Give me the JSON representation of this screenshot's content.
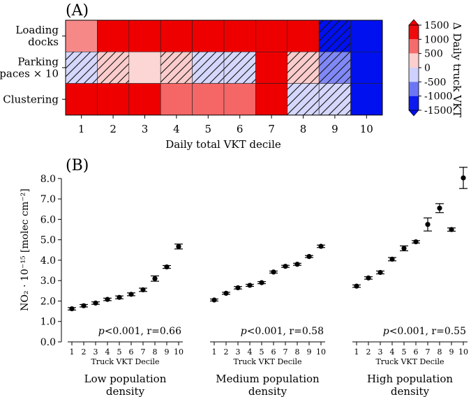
{
  "colors": {
    "red": "#ee0000",
    "blue": "#0010ee",
    "white": "#ffffff",
    "black": "#000000"
  },
  "chart_data": [
    {
      "panel": "(A)",
      "type": "heatmap",
      "rows": [
        "Loading docks",
        "Parking spaces × 10",
        "Clustering"
      ],
      "row_label_lines": [
        [
          "Loading",
          "docks"
        ],
        [
          "Parking",
          "spaces × 10"
        ],
        [
          "Clustering"
        ]
      ],
      "columns": [
        "1",
        "2",
        "3",
        "4",
        "5",
        "6",
        "7",
        "8",
        "9",
        "10"
      ],
      "xlabel": "Daily total VKT decile",
      "values": [
        [
          700,
          1500,
          1500,
          1500,
          1500,
          1500,
          1500,
          1500,
          -1500,
          -1500
        ],
        [
          -250,
          300,
          250,
          300,
          -250,
          -250,
          1500,
          300,
          -750,
          -1500
        ],
        [
          1500,
          1500,
          1500,
          900,
          900,
          900,
          1500,
          -250,
          -250,
          -1500
        ]
      ],
      "hatched": [
        [
          false,
          false,
          false,
          false,
          false,
          false,
          false,
          false,
          true,
          false
        ],
        [
          true,
          true,
          false,
          true,
          true,
          true,
          false,
          true,
          true,
          false
        ],
        [
          false,
          false,
          false,
          false,
          false,
          false,
          false,
          true,
          true,
          false
        ]
      ],
      "colorbar": {
        "label": "Δ Daily truck VKT",
        "range": [
          -1500,
          1500
        ],
        "ticks": [
          "1500",
          "1000",
          "500",
          "0",
          "-500",
          "-1000",
          "-1500"
        ],
        "tick_values": [
          1500,
          1000,
          500,
          0,
          -500,
          -1000,
          -1500
        ]
      }
    },
    {
      "panel": "(B)",
      "type": "scatter",
      "ylabel": "NO₂ · 10⁻¹⁵ [molec cm⁻²]",
      "ylim": [
        0,
        8.2
      ],
      "yticks": [
        "0.0",
        "1.0",
        "2.0",
        "3.0",
        "4.0",
        "5.0",
        "6.0",
        "7.0",
        "8.0"
      ],
      "ytick_values": [
        0,
        1,
        2,
        3,
        4,
        5,
        6,
        7,
        8
      ],
      "x": [
        1,
        2,
        3,
        4,
        5,
        6,
        7,
        8,
        9,
        10
      ],
      "xtick_labels": [
        "1",
        "2",
        "3",
        "4",
        "5",
        "6",
        "7",
        "8",
        "9",
        "10"
      ],
      "xlabel": "Truck VKT  Decile",
      "series": [
        {
          "name": "Low population density",
          "title_lines": [
            "Low population",
            "density"
          ],
          "p": "p",
          "stat": "<0.001, r=0.66",
          "values": [
            1.62,
            1.77,
            1.9,
            2.08,
            2.18,
            2.33,
            2.55,
            3.1,
            3.67,
            4.67
          ],
          "err": [
            0.06,
            0.06,
            0.06,
            0.06,
            0.07,
            0.07,
            0.08,
            0.13,
            0.07,
            0.12
          ]
        },
        {
          "name": "Medium population density",
          "title_lines": [
            "Medium population",
            "density"
          ],
          "p": "p",
          "stat": "<0.001, r=0.58",
          "values": [
            2.05,
            2.38,
            2.65,
            2.77,
            2.9,
            3.42,
            3.7,
            3.8,
            4.18,
            4.68
          ],
          "err": [
            0.05,
            0.05,
            0.06,
            0.05,
            0.05,
            0.05,
            0.05,
            0.05,
            0.05,
            0.06
          ]
        },
        {
          "name": "High population density",
          "title_lines": [
            "High population",
            "density"
          ],
          "p": "p",
          "stat": "<0.001, r=0.55",
          "values": [
            2.73,
            3.13,
            3.4,
            4.05,
            4.58,
            4.9,
            5.75,
            6.55,
            5.5,
            8.03
          ],
          "err": [
            0.06,
            0.06,
            0.07,
            0.08,
            0.12,
            0.06,
            0.32,
            0.22,
            0.08,
            0.52
          ]
        }
      ]
    }
  ]
}
